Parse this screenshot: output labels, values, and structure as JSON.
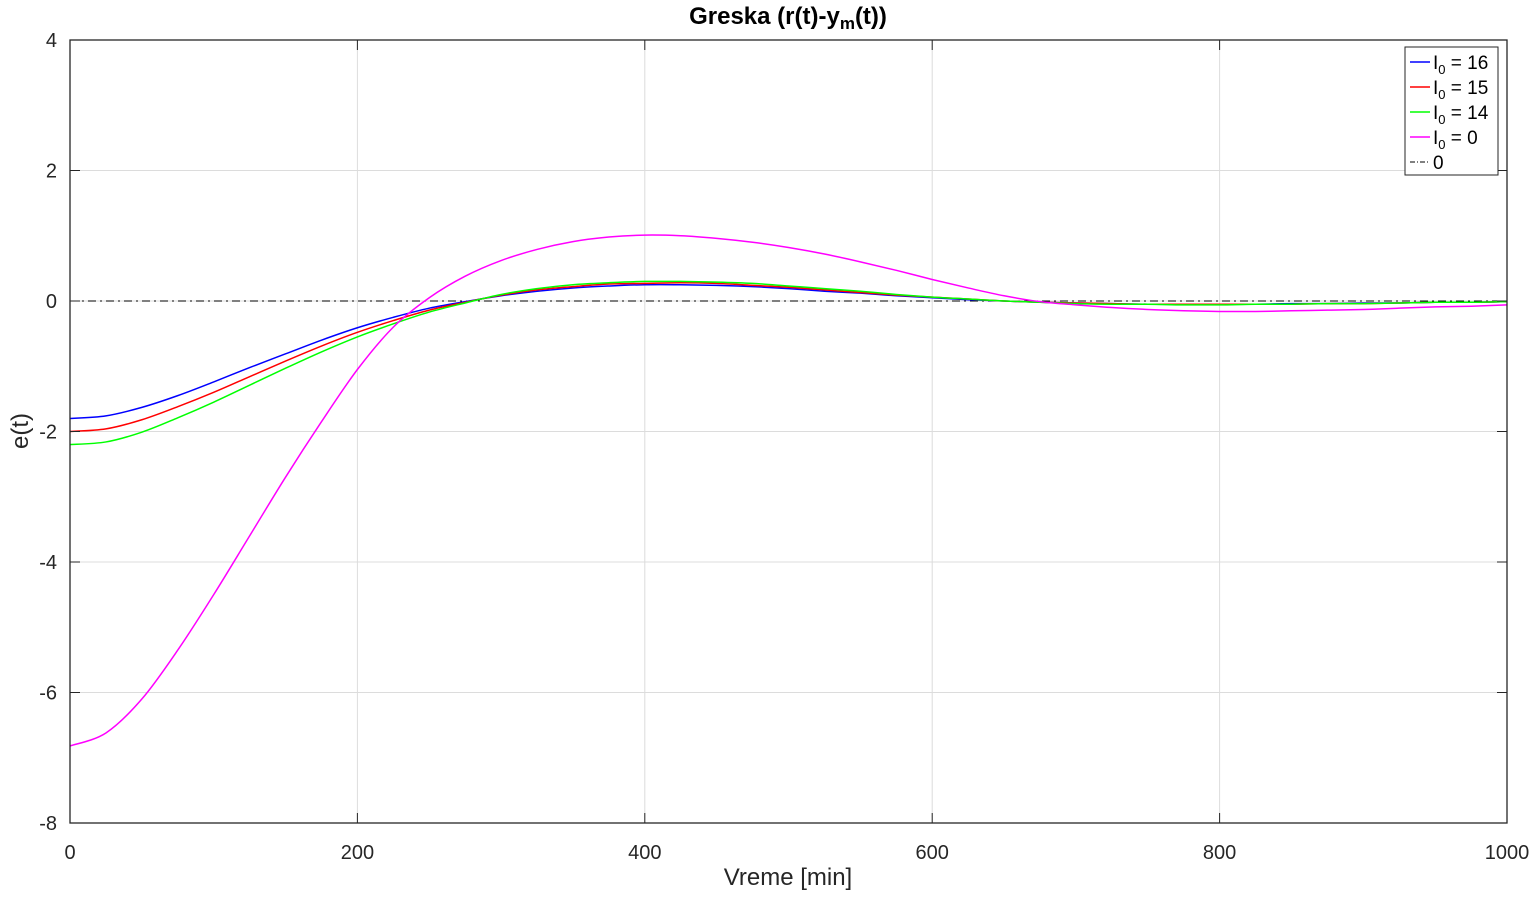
{
  "chart_data": {
    "type": "line",
    "title": {
      "prefix": "Greska (r(t)-y",
      "sub": "m",
      "suffix": "(t))"
    },
    "xlabel": "Vreme [min]",
    "ylabel": "e(t)",
    "xlim": [
      0,
      1000
    ],
    "ylim": [
      -8,
      4
    ],
    "xticks": [
      0,
      200,
      400,
      600,
      800,
      1000
    ],
    "yticks": [
      -8,
      -6,
      -4,
      -2,
      0,
      2,
      4
    ],
    "xtick_labels": [
      "0",
      "200",
      "400",
      "600",
      "800",
      "1000"
    ],
    "ytick_labels": [
      "-8",
      "-6",
      "-4",
      "-2",
      "0",
      "2",
      "4"
    ],
    "grid": true,
    "legend_position": "top-right",
    "x": [
      0,
      25,
      50,
      75,
      100,
      125,
      150,
      175,
      200,
      225,
      250,
      275,
      300,
      325,
      350,
      375,
      400,
      425,
      450,
      475,
      500,
      525,
      550,
      575,
      600,
      625,
      650,
      675,
      700,
      725,
      750,
      775,
      800,
      825,
      850,
      875,
      900,
      925,
      950,
      975,
      1000
    ],
    "series": [
      {
        "label": {
          "base": "I",
          "sub": "0",
          "rest": " = 16"
        },
        "color": "#0000ff",
        "style": "solid",
        "values": [
          -1.8,
          -1.76,
          -1.63,
          -1.45,
          -1.24,
          -1.02,
          -0.81,
          -0.6,
          -0.41,
          -0.25,
          -0.11,
          -0.01,
          0.08,
          0.15,
          0.2,
          0.23,
          0.25,
          0.25,
          0.24,
          0.22,
          0.19,
          0.15,
          0.12,
          0.08,
          0.05,
          0.02,
          0.0,
          -0.02,
          -0.03,
          -0.04,
          -0.05,
          -0.05,
          -0.05,
          -0.05,
          -0.04,
          -0.04,
          -0.03,
          -0.03,
          -0.02,
          -0.02,
          -0.01
        ]
      },
      {
        "label": {
          "base": "I",
          "sub": "0",
          "rest": " = 15"
        },
        "color": "#ff0000",
        "style": "solid",
        "values": [
          -2.0,
          -1.96,
          -1.82,
          -1.62,
          -1.4,
          -1.16,
          -0.92,
          -0.69,
          -0.48,
          -0.3,
          -0.14,
          -0.02,
          0.09,
          0.17,
          0.22,
          0.26,
          0.27,
          0.28,
          0.27,
          0.24,
          0.21,
          0.17,
          0.13,
          0.09,
          0.06,
          0.03,
          0.0,
          -0.02,
          -0.03,
          -0.04,
          -0.05,
          -0.05,
          -0.05,
          -0.05,
          -0.05,
          -0.04,
          -0.04,
          -0.03,
          -0.02,
          -0.02,
          -0.01
        ]
      },
      {
        "label": {
          "base": "I",
          "sub": "0",
          "rest": " = 14"
        },
        "color": "#00ff00",
        "style": "solid",
        "values": [
          -2.2,
          -2.16,
          -2.01,
          -1.79,
          -1.55,
          -1.29,
          -1.03,
          -0.78,
          -0.55,
          -0.35,
          -0.17,
          -0.03,
          0.1,
          0.19,
          0.25,
          0.28,
          0.3,
          0.3,
          0.29,
          0.27,
          0.23,
          0.19,
          0.15,
          0.1,
          0.06,
          0.03,
          0.0,
          -0.02,
          -0.04,
          -0.05,
          -0.05,
          -0.06,
          -0.06,
          -0.05,
          -0.05,
          -0.04,
          -0.04,
          -0.03,
          -0.02,
          -0.02,
          -0.01
        ]
      },
      {
        "label": {
          "base": "I",
          "sub": "0",
          "rest": " = 0"
        },
        "color": "#ff00ff",
        "style": "solid",
        "values": [
          -6.82,
          -6.62,
          -6.1,
          -5.35,
          -4.5,
          -3.6,
          -2.7,
          -1.85,
          -1.05,
          -0.4,
          0.05,
          0.38,
          0.62,
          0.79,
          0.91,
          0.98,
          1.01,
          1.0,
          0.96,
          0.9,
          0.82,
          0.72,
          0.6,
          0.47,
          0.33,
          0.2,
          0.08,
          -0.01,
          -0.06,
          -0.1,
          -0.13,
          -0.15,
          -0.16,
          -0.16,
          -0.15,
          -0.14,
          -0.13,
          -0.11,
          -0.09,
          -0.08,
          -0.06
        ]
      },
      {
        "label": {
          "base": "0",
          "sub": "",
          "rest": ""
        },
        "color": "#000000",
        "style": "dashdot",
        "values": [
          0,
          0,
          0,
          0,
          0,
          0,
          0,
          0,
          0,
          0,
          0,
          0,
          0,
          0,
          0,
          0,
          0,
          0,
          0,
          0,
          0,
          0,
          0,
          0,
          0,
          0,
          0,
          0,
          0,
          0,
          0,
          0,
          0,
          0,
          0,
          0,
          0,
          0,
          0,
          0,
          0
        ]
      }
    ]
  }
}
